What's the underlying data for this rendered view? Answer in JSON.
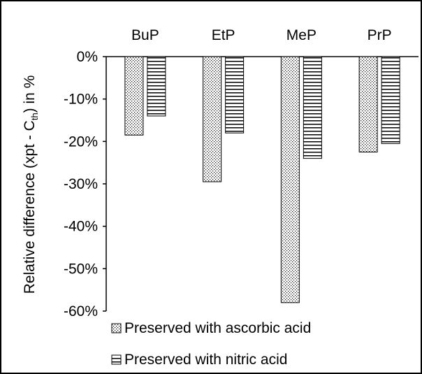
{
  "chart_data": {
    "type": "bar",
    "categories": [
      "BuP",
      "EtP",
      "MeP",
      "PrP"
    ],
    "series": [
      {
        "name": "Preserved with ascorbic acid",
        "values": [
          -18.5,
          -29.5,
          -58,
          -22.5
        ],
        "pattern": "dots"
      },
      {
        "name": "Preserved with nitric acid",
        "values": [
          -14,
          -18,
          -24,
          -20.5
        ],
        "pattern": "horizontal-lines"
      }
    ],
    "title": "",
    "xlabel": "",
    "ylabel_parts": [
      "Relative difference (xpt - C",
      "th",
      ") in %"
    ],
    "ylim": [
      -60,
      0
    ],
    "yticks": [
      0,
      -10,
      -20,
      -30,
      -40,
      -50,
      -60
    ],
    "ytick_labels": [
      "0%",
      "-10%",
      "-20%",
      "-30%",
      "-40%",
      "-50%",
      "-60%"
    ],
    "category_axis_position": "top",
    "grid": false,
    "legend_position": "bottom-left",
    "colors": {
      "ink": "#000000",
      "background": "#ffffff"
    }
  }
}
